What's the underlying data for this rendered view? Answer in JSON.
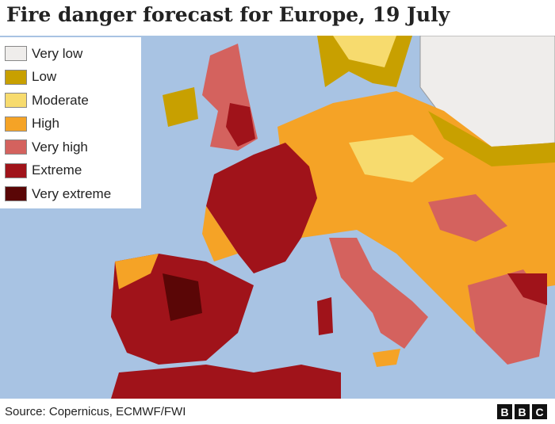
{
  "header": {
    "title": "Fire danger forecast for Europe, 19 July"
  },
  "legend": {
    "items": [
      {
        "label": "Very low",
        "color": "#efedeb"
      },
      {
        "label": "Low",
        "color": "#c8a000"
      },
      {
        "label": "Moderate",
        "color": "#f7db6e"
      },
      {
        "label": "High",
        "color": "#f5a326"
      },
      {
        "label": "Very high",
        "color": "#d4625e"
      },
      {
        "label": "Extreme",
        "color": "#a0131a"
      },
      {
        "label": "Very extreme",
        "color": "#5a0606"
      }
    ]
  },
  "footer": {
    "source": "Source: Copernicus, ECMWF/FWI",
    "logo": [
      "B",
      "B",
      "C"
    ]
  }
}
